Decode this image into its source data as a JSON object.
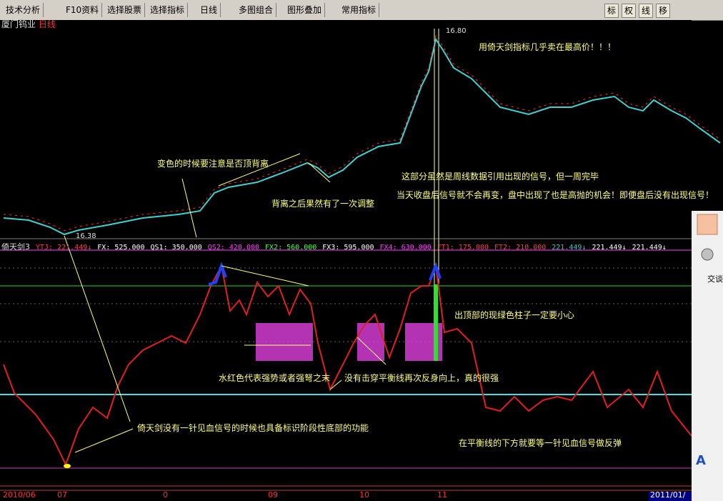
{
  "toolbar": {
    "buttons": [
      "技术分析",
      "F10资料",
      "选择股票",
      "选择指标",
      "日线",
      "多图组合",
      "图形叠加",
      "常用指标"
    ],
    "right_buttons": [
      "标",
      "权",
      "线",
      "移"
    ]
  },
  "stock": {
    "name": "厦门钨业",
    "period": "日线"
  },
  "price_chart": {
    "high_label": "16.80",
    "low_label": "16.38",
    "annotations": [
      "用倚天剑指标几乎卖在最高价！！！",
      "变色的时候要注意是否顶背离",
      "背离之后果然有了一次调整",
      "这部分虽然是周线数据引用出现的信号，但一周完毕",
      "当天收盘后信号就不会再变，盘中出现了也是高抛的机会！即便盘后没有出现信号！"
    ]
  },
  "indicator": {
    "name": "倚天剑3",
    "fields": [
      {
        "text": "YTJ: 221.449↓",
        "color": "#ff4040"
      },
      {
        "text": "FX: 525.000",
        "color": "#ffffff"
      },
      {
        "text": "QS1: 350.000",
        "color": "#ffffff"
      },
      {
        "text": "QS2: 420.000",
        "color": "#ff40ff"
      },
      {
        "text": "FX2: 560.000",
        "color": "#40ff40"
      },
      {
        "text": "FX3: 595.000",
        "color": "#ffffff"
      },
      {
        "text": "FX4: 630.000",
        "color": "#ff40ff"
      },
      {
        "text": "FT1: 175.000",
        "color": "#ff4040"
      },
      {
        "text": "FT2: 210.000",
        "color": "#ff4040"
      },
      {
        "text": "221.449↓",
        "color": "#40c0c0"
      },
      {
        "text": "221.449↓",
        "color": "#ffffff"
      },
      {
        "text": "221.449↓",
        "color": "#ffffff"
      }
    ],
    "annotations": [
      "出顶部的现绿色柱子一定要小心",
      "水红色代表强势或者强弩之末",
      "没有击穿平衡线再次反身向上，真的很强",
      "倚天剑没有一针见血信号的时候也具备标识阶段性底部的功能",
      "在平衡线的下方就要等一针见血信号做反弹"
    ]
  },
  "time_axis": [
    "2010/06",
    "07",
    "0",
    "09",
    "10",
    "11",
    "2011/01/"
  ],
  "side_panel": {
    "chat": "交谈",
    "font_button": "A"
  }
}
